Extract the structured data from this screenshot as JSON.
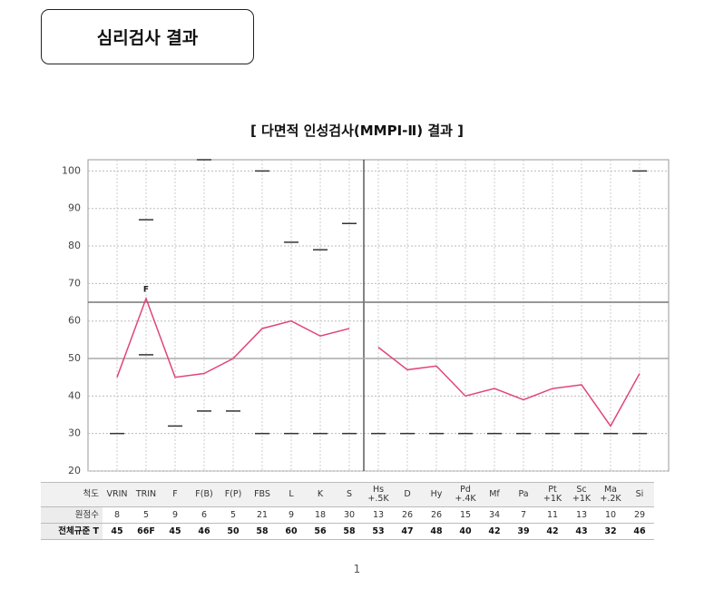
{
  "header": {
    "title": "심리검사 결과"
  },
  "chart_data": {
    "type": "line",
    "title": "[ 다면적 인성검사(MMPI-Ⅱ) 결과 ]",
    "categories": [
      "VRIN",
      "TRIN",
      "F",
      "F(B)",
      "F(P)",
      "FBS",
      "L",
      "K",
      "S",
      "Hs\n+.5K",
      "D",
      "Hy",
      "Pd\n+.4K",
      "Mf",
      "Pa",
      "Pt\n+1K",
      "Sc\n+1K",
      "Ma\n+.2K",
      "Si"
    ],
    "series": [
      {
        "color": "#e0457b",
        "values": [
          45,
          66,
          45,
          46,
          50,
          58,
          60,
          56,
          58,
          null,
          null,
          null,
          null,
          null,
          null,
          null,
          null,
          null,
          null
        ],
        "value_labels": [
          null,
          "66F",
          null,
          null,
          null,
          null,
          null,
          null,
          null,
          null,
          null,
          null,
          null,
          null,
          null,
          null,
          null,
          null,
          null
        ]
      },
      {
        "color": "#e0457b",
        "values": [
          null,
          null,
          null,
          null,
          null,
          null,
          null,
          null,
          null,
          53,
          47,
          48,
          40,
          42,
          39,
          42,
          43,
          32,
          46
        ]
      }
    ],
    "annotation": "F",
    "upper_markers": [
      null,
      87,
      null,
      103,
      null,
      100,
      81,
      79,
      86,
      null,
      null,
      null,
      null,
      null,
      null,
      null,
      null,
      null,
      100
    ],
    "lower_markers": [
      30,
      51,
      32,
      36,
      36,
      30,
      30,
      30,
      30,
      30,
      30,
      30,
      30,
      30,
      30,
      30,
      30,
      30,
      30
    ],
    "reference_lines": [
      65,
      50
    ],
    "ylim": [
      20,
      103
    ],
    "yticks": [
      20,
      30,
      40,
      50,
      60,
      70,
      80,
      90,
      100
    ],
    "grid": true,
    "row_labels": [
      "척도",
      "원점수",
      "전체규준 T"
    ],
    "raw_scores": [
      8,
      5,
      9,
      6,
      5,
      21,
      9,
      18,
      30,
      13,
      26,
      26,
      15,
      34,
      7,
      11,
      13,
      10,
      29
    ]
  },
  "page_number": "1"
}
